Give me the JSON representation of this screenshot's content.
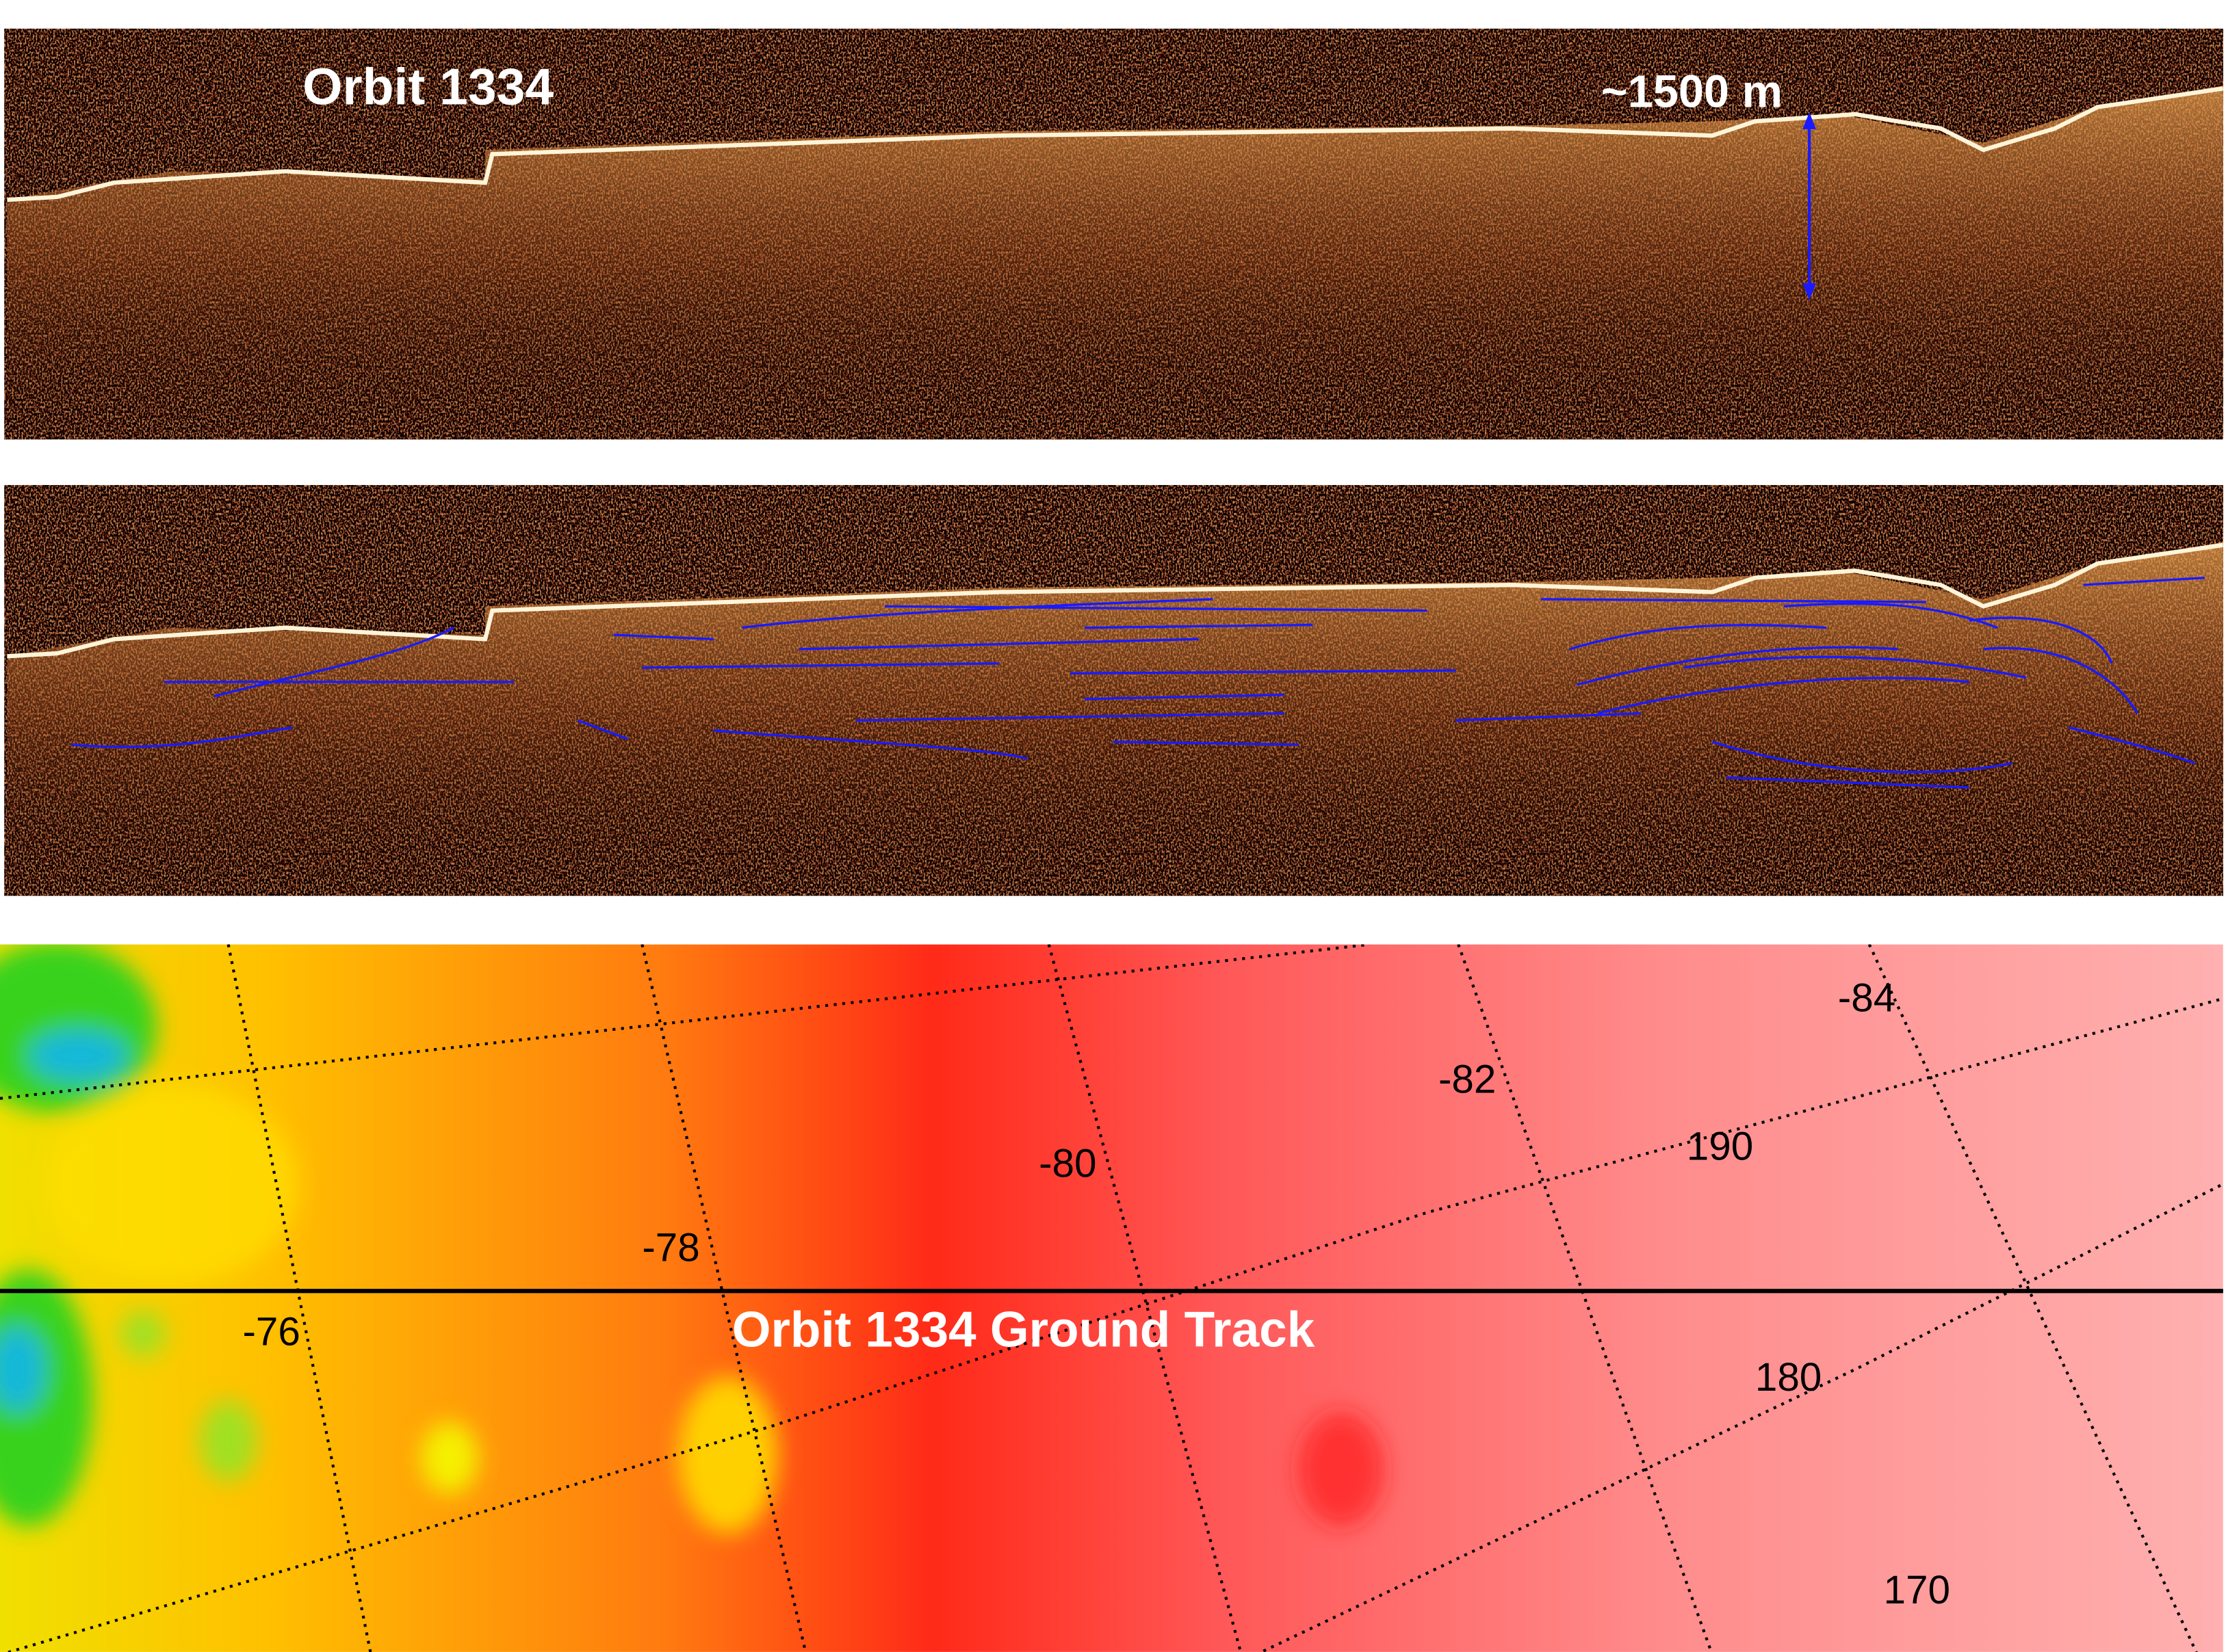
{
  "radargram_top": {
    "title": "Orbit 1334",
    "thickness_annotation": "~1500 m",
    "arrow_color": "#1a1aff"
  },
  "radargram_bottom": {
    "layer_trace_color": "#1a1aff"
  },
  "map": {
    "track_label": "Orbit 1334 Ground Track",
    "latitude_labels": [
      "-76",
      "-78",
      "-80",
      "-82",
      "-84"
    ],
    "longitude_labels": [
      "190",
      "180",
      "170"
    ],
    "colors": {
      "low": "#19b8d8",
      "mid_low": "#39d21a",
      "mid": "#f5f000",
      "mid_high": "#ff7a00",
      "high": "#ff1a14",
      "highest": "#ffb0b0"
    }
  }
}
